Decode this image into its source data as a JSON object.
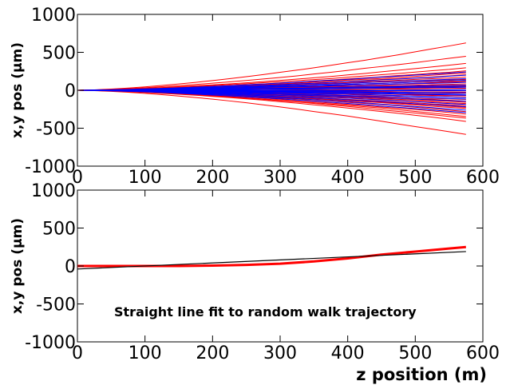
{
  "chart_data": [
    {
      "type": "line",
      "panel": "top",
      "title": "",
      "xlabel": "",
      "ylabel": "x,y pos (μm)",
      "xlim": [
        0,
        600
      ],
      "ylim": [
        -1000,
        1000
      ],
      "xticks": [
        0,
        100,
        200,
        300,
        400,
        500,
        600
      ],
      "yticks": [
        -1000,
        -500,
        0,
        500,
        1000
      ],
      "x": [
        0,
        25,
        50,
        75,
        100,
        125,
        150,
        175,
        200,
        225,
        250,
        275,
        300,
        325,
        350,
        375,
        400,
        425,
        450,
        475,
        500,
        525,
        550,
        575
      ],
      "series_colors": [
        "#ff0000",
        "#0000ff"
      ],
      "red_endpoints_um": [
        620,
        450,
        350,
        300,
        260,
        230,
        200,
        175,
        150,
        130,
        110,
        95,
        80,
        65,
        50,
        35,
        20,
        5,
        -10,
        -25,
        -40,
        -60,
        -80,
        -100,
        -120,
        -140,
        -160,
        -180,
        -200,
        -220,
        -250,
        -280,
        -310,
        -340,
        -370,
        -400,
        -580
      ],
      "blue_endpoints_um": [
        250,
        200,
        160,
        130,
        100,
        75,
        50,
        30,
        10,
        -10,
        -30,
        -50,
        -70,
        -95,
        -120,
        -150,
        -180,
        -220,
        -260,
        -300
      ],
      "legend": "none",
      "grid": false
    },
    {
      "type": "line",
      "panel": "bottom",
      "title": "",
      "xlabel": "z position (m)",
      "ylabel": "x,y pos (μm)",
      "xlim": [
        0,
        600
      ],
      "ylim": [
        -1000,
        1000
      ],
      "xticks": [
        0,
        100,
        200,
        300,
        400,
        500,
        600
      ],
      "yticks": [
        -1000,
        -500,
        0,
        500,
        1000
      ],
      "series": [
        {
          "color": "#ff0000",
          "x": [
            0,
            50,
            100,
            150,
            200,
            250,
            300,
            350,
            400,
            450,
            500,
            550,
            575
          ],
          "y": [
            0,
            0,
            0,
            0,
            5,
            15,
            30,
            60,
            100,
            150,
            190,
            230,
            250
          ]
        },
        {
          "color": "#000000",
          "x": [
            0,
            575
          ],
          "y": [
            -40,
            190
          ]
        }
      ],
      "annotation": "Straight line fit to random walk trajectory",
      "legend": "none",
      "grid": false
    }
  ]
}
